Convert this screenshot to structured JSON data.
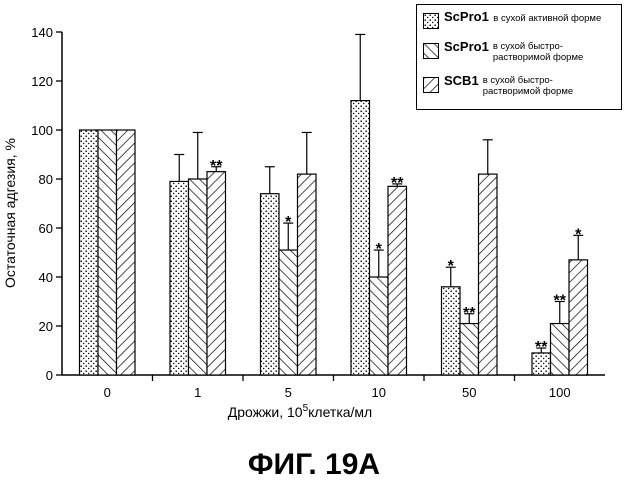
{
  "chart_data": {
    "type": "bar",
    "categories": [
      "0",
      "1",
      "5",
      "10",
      "50",
      "100"
    ],
    "series": [
      {
        "name": "ScPro1",
        "description": "в сухой активной форме",
        "pattern": "dots",
        "values": [
          100,
          79,
          74,
          112,
          36,
          9
        ],
        "errors": [
          0,
          11,
          11,
          27,
          8,
          2
        ],
        "annotations": [
          "",
          "",
          "",
          "",
          "*",
          "**"
        ]
      },
      {
        "name": "ScPro1",
        "description": "в сухой быстро-растворимой форме",
        "pattern": "diag",
        "values": [
          100,
          80,
          51,
          40,
          21,
          21
        ],
        "errors": [
          0,
          19,
          11,
          11,
          4,
          9
        ],
        "annotations": [
          "",
          "",
          "*",
          "*",
          "**",
          "**"
        ]
      },
      {
        "name": "SCB1",
        "description": "в сухой быстро-растворимой форме",
        "pattern": "back",
        "values": [
          100,
          83,
          82,
          77,
          82,
          47
        ],
        "errors": [
          0,
          2,
          17,
          1,
          14,
          10
        ],
        "annotations": [
          "",
          "**",
          "",
          "**",
          "",
          "*"
        ]
      }
    ],
    "xlabel": "Дрожжи, 10",
    "xlabel_sup": "5",
    "xlabel_suffix": "клетка/мл",
    "ylabel": "Остаточная адгезия, %",
    "ylim": [
      0,
      140
    ],
    "yticks": [
      "0",
      "20",
      "40",
      "60",
      "80",
      "100",
      "120",
      "140"
    ],
    "legend_position": "top-right",
    "grid": false
  },
  "caption": "ФИГ. 19А"
}
